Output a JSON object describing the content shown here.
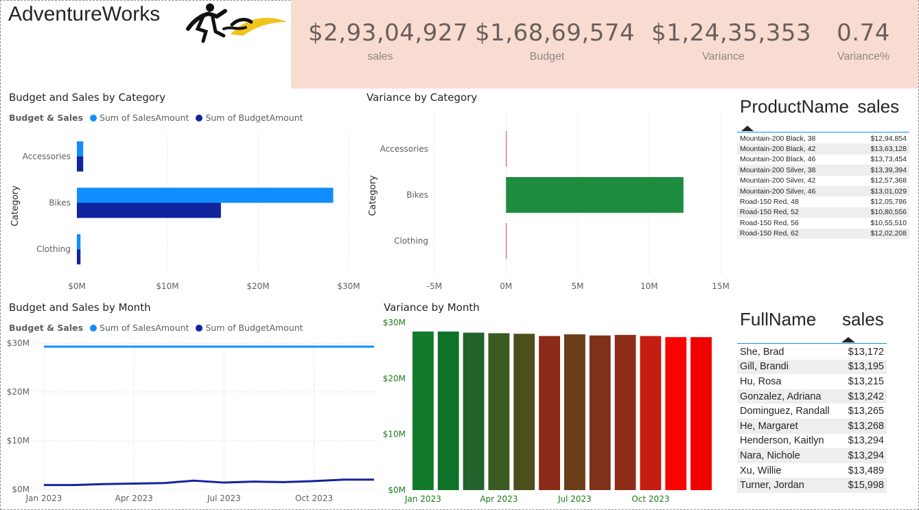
{
  "brand": {
    "name": "AdventureWorks"
  },
  "kpis": [
    {
      "value": "$2,93,04,927",
      "label": "sales"
    },
    {
      "value": "$1,68,69,574",
      "label": "Budget"
    },
    {
      "value": "$1,24,35,353",
      "label": "Variance"
    },
    {
      "value": "0.74",
      "label": "Variance%"
    }
  ],
  "colors": {
    "sales": "#118DFF",
    "budget": "#12239E",
    "positive": "#1E8C3E",
    "negative": "#D64550",
    "kpi_band": "#F8DCD2"
  },
  "legend": {
    "title": "Budget & Sales",
    "sales": "Sum of SalesAmount",
    "budget": "Sum of BudgetAmount"
  },
  "product_table": {
    "col1": "ProductName",
    "col2": "sales",
    "rows": [
      [
        "Mountain-200 Black, 38",
        "$12,94,854"
      ],
      [
        "Mountain-200 Black, 42",
        "$13,63,128"
      ],
      [
        "Mountain-200 Black, 46",
        "$13,73,454"
      ],
      [
        "Mountain-200 Silver, 38",
        "$13,39,394"
      ],
      [
        "Mountain-200 Silver, 42",
        "$12,57,368"
      ],
      [
        "Mountain-200 Silver, 46",
        "$13,01,029"
      ],
      [
        "Road-150 Red, 48",
        "$12,05,786"
      ],
      [
        "Road-150 Red, 52",
        "$10,80,556"
      ],
      [
        "Road-150 Red, 56",
        "$10,55,510"
      ],
      [
        "Road-150 Red, 62",
        "$12,02,208"
      ]
    ]
  },
  "person_table": {
    "col1": "FullName",
    "col2": "sales",
    "rows": [
      [
        "She, Brad",
        "$13,172"
      ],
      [
        "Gill, Brandi",
        "$13,195"
      ],
      [
        "Hu, Rosa",
        "$13,215"
      ],
      [
        "Gonzalez, Adriana",
        "$13,242"
      ],
      [
        "Dominguez, Randall",
        "$13,265"
      ],
      [
        "He, Margaret",
        "$13,268"
      ],
      [
        "Henderson, Kaitlyn",
        "$13,294"
      ],
      [
        "Nara, Nichole",
        "$13,294"
      ],
      [
        "Xu, Willie",
        "$13,489"
      ],
      [
        "Turner, Jordan",
        "$15,998"
      ]
    ]
  },
  "chart_data": [
    {
      "type": "bar",
      "title": "Budget and Sales by Category",
      "ylabel": "Category",
      "categories": [
        "Accessories",
        "Bikes",
        "Clothing"
      ],
      "series": [
        {
          "name": "Sum of SalesAmount",
          "values": [
            0.7,
            28.3,
            0.4
          ]
        },
        {
          "name": "Sum of BudgetAmount",
          "values": [
            0.7,
            15.9,
            0.4
          ]
        }
      ],
      "xlim": [
        0,
        30
      ],
      "ticks": [
        "$0M",
        "$10M",
        "$20M",
        "$30M"
      ],
      "orientation": "horizontal"
    },
    {
      "type": "bar",
      "title": "Variance by Category",
      "ylabel": "Category",
      "categories": [
        "Accessories",
        "Bikes",
        "Clothing"
      ],
      "values": [
        0.02,
        12.4,
        0.02
      ],
      "xlim": [
        -5,
        15
      ],
      "ticks": [
        "-5M",
        "0M",
        "5M",
        "10M",
        "15M"
      ],
      "orientation": "horizontal"
    },
    {
      "type": "line",
      "title": "Budget and Sales by Month",
      "x": [
        "2023-01",
        "2023-02",
        "2023-03",
        "2023-04",
        "2023-05",
        "2023-06",
        "2023-07",
        "2023-08",
        "2023-09",
        "2023-10",
        "2023-11",
        "2023-12"
      ],
      "xticks": [
        "Jan 2023",
        "Apr 2023",
        "Jul 2023",
        "Oct 2023"
      ],
      "series": [
        {
          "name": "Sum of SalesAmount",
          "values": [
            29.3,
            29.3,
            29.3,
            29.3,
            29.3,
            29.3,
            29.3,
            29.3,
            29.3,
            29.3,
            29.3,
            29.3
          ]
        },
        {
          "name": "Sum of BudgetAmount",
          "values": [
            0.9,
            0.9,
            1.1,
            1.2,
            1.3,
            1.8,
            1.4,
            1.6,
            1.5,
            1.7,
            2.0,
            2.0
          ]
        }
      ],
      "ylim": [
        0,
        30
      ],
      "yticks": [
        "$0M",
        "$10M",
        "$20M",
        "$30M"
      ]
    },
    {
      "type": "bar",
      "title": "Variance by Month",
      "x": [
        "2023-01",
        "2023-02",
        "2023-03",
        "2023-04",
        "2023-05",
        "2023-06",
        "2023-07",
        "2023-08",
        "2023-09",
        "2023-10",
        "2023-11",
        "2023-12"
      ],
      "xticks": [
        "Jan 2023",
        "Apr 2023",
        "Jul 2023",
        "Oct 2023"
      ],
      "values": [
        28.4,
        28.4,
        28.2,
        28.1,
        28.0,
        27.6,
        27.9,
        27.7,
        27.8,
        27.6,
        27.4,
        27.4
      ],
      "colors": [
        "#137a2c",
        "#107229",
        "#23622a",
        "#3a5a22",
        "#4c4e1c",
        "#8a2a17",
        "#6a3c18",
        "#7e3219",
        "#8d2d17",
        "#c41d12",
        "#ff0000",
        "#f20000"
      ],
      "ylim": [
        0,
        30
      ],
      "yticks": [
        "$0M",
        "$10M",
        "$20M",
        "$30M"
      ]
    }
  ]
}
